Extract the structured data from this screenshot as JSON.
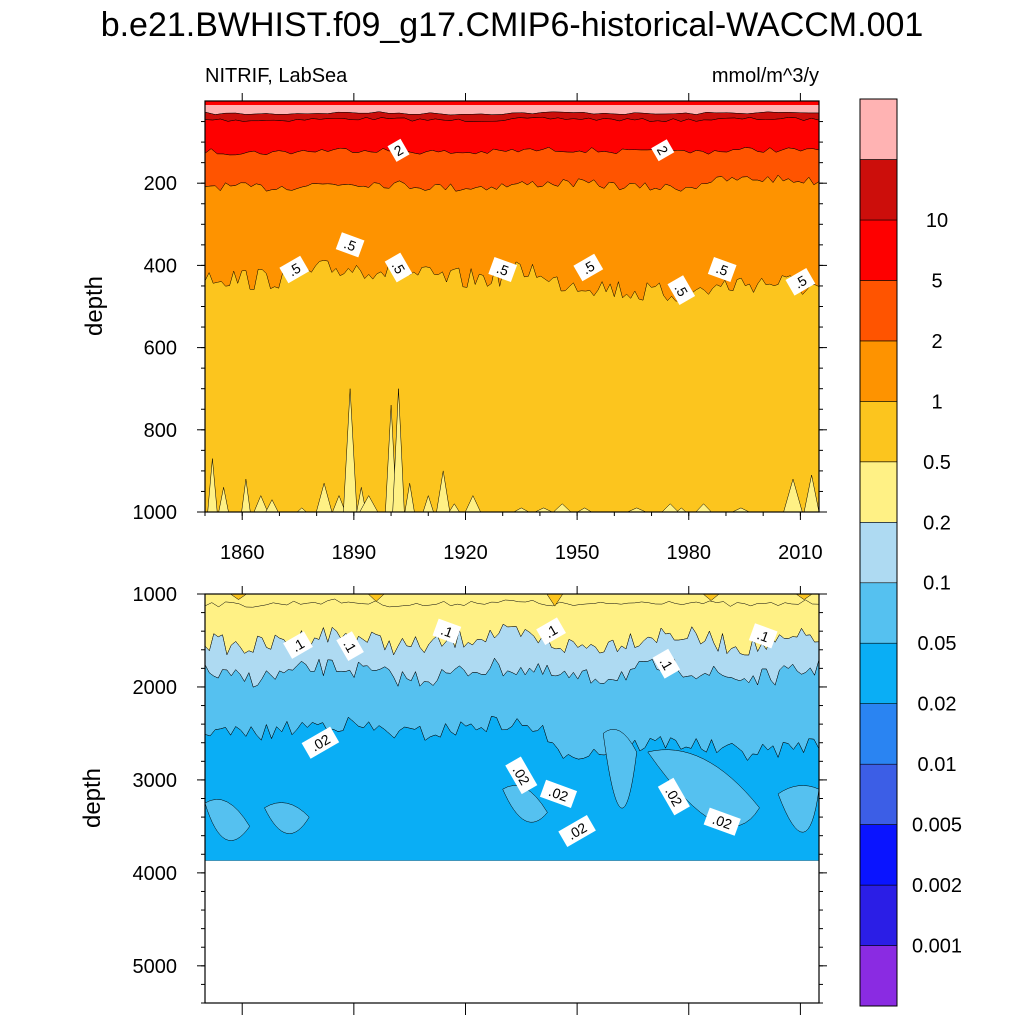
{
  "chart_data": {
    "type": "contour",
    "title": "b.e21.BWHIST.f09_g17.CMIP6-historical-WACCM.001",
    "subtitle_left": "NITRIF, LabSea",
    "subtitle_right": "mmol/m^3/y",
    "colorbar": {
      "levels": [
        "0.001",
        "0.002",
        "0.005",
        "0.01",
        "0.02",
        "0.05",
        "0.1",
        "0.2",
        "0.5",
        "1",
        "2",
        "5",
        "10"
      ],
      "colors": [
        "#8a2be2",
        "#2b1ee6",
        "#0a14ff",
        "#3c5ee6",
        "#2a84f2",
        "#0aaef5",
        "#55c1f0",
        "#aedaf2",
        "#fff185",
        "#fcc51e",
        "#fe9300",
        "#ff5400",
        "#fe0000",
        "#cc0e0b",
        "#ffb3b3"
      ]
    },
    "panels": [
      {
        "name": "upper",
        "xlabel": "",
        "ylabel": "depth",
        "xlim": [
          1850,
          2015
        ],
        "ylim": [
          1000,
          0
        ],
        "xticks": [
          "1860",
          "1890",
          "1920",
          "1950",
          "1980",
          "2010"
        ],
        "yticks": [
          "200",
          "400",
          "600",
          "800",
          "1000"
        ],
        "contour_labels": [
          {
            "text": "2",
            "year": 1902,
            "depth": 120
          },
          {
            "text": "2",
            "year": 1973,
            "depth": 120
          },
          {
            "text": ".5",
            "year": 1889,
            "depth": 350
          },
          {
            "text": ".5",
            "year": 1874,
            "depth": 410
          },
          {
            "text": ".5",
            "year": 1902,
            "depth": 405
          },
          {
            "text": ".5",
            "year": 1930,
            "depth": 410
          },
          {
            "text": ".5",
            "year": 1953,
            "depth": 405
          },
          {
            "text": ".5",
            "year": 1978,
            "depth": 460
          },
          {
            "text": ".5",
            "year": 1989,
            "depth": 410
          },
          {
            "text": ".5",
            "year": 2010,
            "depth": 440
          }
        ]
      },
      {
        "name": "lower",
        "xlabel": "",
        "ylabel": "depth",
        "xlim": [
          1850,
          2015
        ],
        "ylim": [
          5400,
          1000
        ],
        "xticks": [],
        "yticks": [
          "1000",
          "2000",
          "3000",
          "4000",
          "5000"
        ],
        "contour_labels": [
          {
            "text": ".1",
            "year": 1875,
            "depth": 1550
          },
          {
            "text": ".1",
            "year": 1889,
            "depth": 1560
          },
          {
            "text": ".1",
            "year": 1915,
            "depth": 1400
          },
          {
            "text": ".1",
            "year": 1943,
            "depth": 1400
          },
          {
            "text": ".1",
            "year": 1974,
            "depth": 1750
          },
          {
            "text": ".1",
            "year": 2000,
            "depth": 1450
          },
          {
            "text": ".02",
            "year": 1881,
            "depth": 2600
          },
          {
            "text": ".02",
            "year": 1935,
            "depth": 2950
          },
          {
            "text": ".02",
            "year": 1945,
            "depth": 3150
          },
          {
            "text": ".02",
            "year": 1950,
            "depth": 3550
          },
          {
            "text": ".02",
            "year": 1976,
            "depth": 3180
          },
          {
            "text": ".02",
            "year": 1989,
            "depth": 3450
          }
        ]
      }
    ]
  }
}
